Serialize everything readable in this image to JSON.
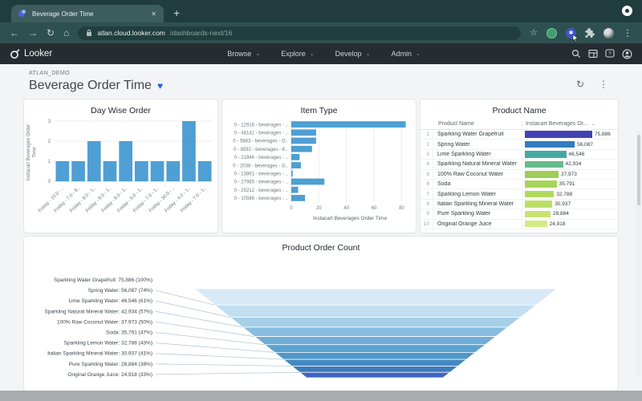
{
  "browser": {
    "tab_title": "Beverage Order Time",
    "close_glyph": "✕",
    "new_tab_glyph": "+",
    "back_glyph": "←",
    "forward_glyph": "→",
    "reload_glyph": "↻",
    "home_glyph": "⌂",
    "url_domain": "atlan.cloud.looker.com",
    "url_path": "/dashboards-next/16",
    "star_glyph": "☆",
    "menu_glyph": "⋮"
  },
  "nav": {
    "brand": "Looker",
    "chevron": "⌄",
    "menus": [
      {
        "label": "Browse"
      },
      {
        "label": "Explore"
      },
      {
        "label": "Develop"
      },
      {
        "label": "Admin"
      }
    ]
  },
  "header": {
    "breadcrumb": "ATLAN_DEMO",
    "title": "Beverage Order Time",
    "favorite_glyph": "♥",
    "refresh_glyph": "↻",
    "menu_glyph": "⋮"
  },
  "colors": {
    "bar_blue": "#4f9fd4",
    "grid": "#ebedef",
    "axis_text": "#6f777c"
  },
  "chart_data": [
    {
      "type": "bar",
      "title": "Day Wise Order",
      "categories": [
        "Friday - 10.0 - ..",
        "Friday - 7.0 - 8..",
        "Friday - 8.0 - 1..",
        "Friday - 8.0 - 1..",
        "Friday - 6.0 - 1..",
        "Friday - 6.0 - 1..",
        "Friday - 7.0 - 1..",
        "Friday - 30.0 - ..",
        "Friday - 4.0 - 1..",
        "Friday - 7.0 - 1.."
      ],
      "values": [
        1,
        1,
        2,
        1,
        2,
        1,
        1,
        1,
        3,
        1
      ],
      "ylabel": "Instacart Beverages Order Time",
      "ylim": [
        0,
        3
      ],
      "yticks": [
        0,
        1,
        2,
        3
      ],
      "bar_color": "#4f9fd4",
      "grid": true
    },
    {
      "type": "bar",
      "orientation": "horizontal",
      "title": "Item Type",
      "categories": [
        "0 - 12916 - beverages - ..",
        "0 - 48142 - beverages - ..",
        "0 - 5883 - beverages - O..",
        "0 - 8592 - beverages - K..",
        "0 - 21846 - beverages - ..",
        "0 - 2038 - beverages - G..",
        "0 - 13861 - beverages - ..",
        "0 - 27985 - beverages - ..",
        "0 - 25212 - beverages - ..",
        "0 - 10586 - beverages - .."
      ],
      "values": [
        83,
        18,
        18,
        15,
        6,
        7,
        1,
        24,
        5,
        10
      ],
      "xlabel": "Instacart Beverages Order Time",
      "xlim": [
        0,
        85
      ],
      "xticks": [
        0,
        20,
        40,
        60,
        80
      ],
      "bar_color": "#4f9fd4",
      "grid": true
    },
    {
      "type": "table",
      "title": "Product Name",
      "columns": [
        "Product Name",
        "Instacart Beverages Or..."
      ],
      "value_max": 75886,
      "rows": [
        {
          "n": "1",
          "name": "Sparkling Water Grapefruit",
          "value": "75,886",
          "v": 75886,
          "color": "#4441b3"
        },
        {
          "n": "2",
          "name": "Spring Water",
          "value": "56,087",
          "v": 56087,
          "color": "#337cbd"
        },
        {
          "n": "3",
          "name": "Lime Sparkling Water",
          "value": "46,546",
          "v": 46546,
          "color": "#45a8a3"
        },
        {
          "n": "4",
          "name": "Sparkling Natural Mineral Water",
          "value": "42,934",
          "v": 42934,
          "color": "#67bb8a"
        },
        {
          "n": "5",
          "name": "100% Raw Coconut Water",
          "value": "37,973",
          "v": 37973,
          "color": "#9ecd58"
        },
        {
          "n": "6",
          "name": "Soda",
          "value": "35,791",
          "v": 35791,
          "color": "#a7d35b"
        },
        {
          "n": "7",
          "name": "Sparkling Lemon Water",
          "value": "32,788",
          "v": 32788,
          "color": "#b1d960"
        },
        {
          "n": "8",
          "name": "Italian Sparkling Mineral Water",
          "value": "30,937",
          "v": 30937,
          "color": "#bbdf66"
        },
        {
          "n": "9",
          "name": "Pure Sparkling Water",
          "value": "28,884",
          "v": 28884,
          "color": "#c6e46f"
        },
        {
          "n": "10",
          "name": "Original Orange Juice",
          "value": "24,918",
          "v": 24918,
          "color": "#d3ec82"
        }
      ]
    },
    {
      "type": "funnel",
      "title": "Product Order Count",
      "steps": [
        {
          "label": "Sparkling Water Grapefruit: 75,886 (100%)",
          "pct": 100,
          "color": "#d8eaf7"
        },
        {
          "label": "Spring Water: 56,087 (74%)",
          "pct": 74,
          "color": "#c2def1"
        },
        {
          "label": "Lime Sparkling Water: 46,546 (61%)",
          "pct": 61,
          "color": "#a6cfe8"
        },
        {
          "label": "Sparkling Natural Mineral Water: 42,934 (57%)",
          "pct": 57,
          "color": "#88bde0"
        },
        {
          "label": "100% Raw Coconut Water: 37,973 (50%)",
          "pct": 50,
          "color": "#6fadd7"
        },
        {
          "label": "Soda: 35,791 (47%)",
          "pct": 47,
          "color": "#5ca2d0"
        },
        {
          "label": "Sparkling Lemon Water: 32,788 (43%)",
          "pct": 43,
          "color": "#4f96c9"
        },
        {
          "label": "Italian Sparkling Mineral Water: 30,937 (41%)",
          "pct": 41,
          "color": "#4489c2"
        },
        {
          "label": "Pure Sparkling Water: 28,884 (38%)",
          "pct": 38,
          "color": "#3f7bbc"
        },
        {
          "label": "Original Orange Juice: 24,918 (33%)",
          "pct": 33,
          "color": "#3e64c4"
        }
      ]
    }
  ]
}
